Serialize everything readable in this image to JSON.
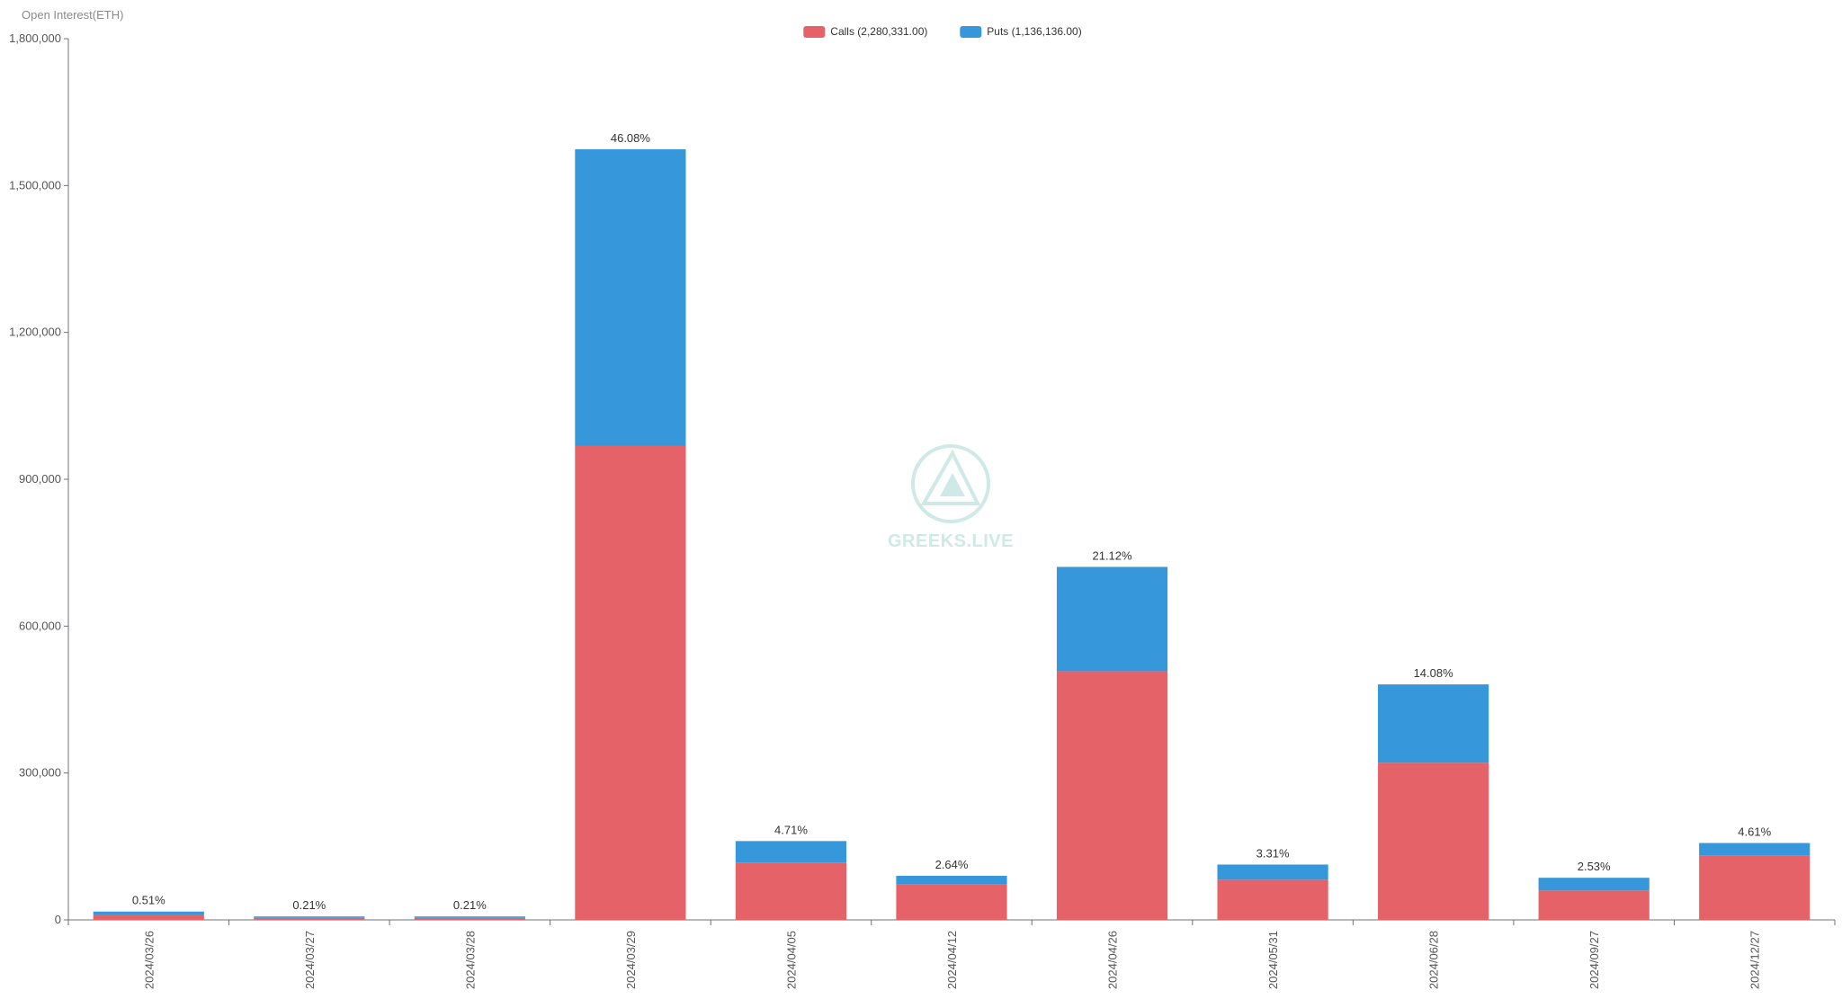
{
  "chart_data": {
    "type": "bar",
    "stacked": true,
    "ylabel": "Open Interest(ETH)",
    "ylim": [
      0,
      1800000
    ],
    "yticks": [
      0,
      300000,
      600000,
      900000,
      1200000,
      1500000,
      1800000
    ],
    "ytick_labels": [
      "0",
      "300,000",
      "600,000",
      "900,000",
      "1,200,000",
      "1,500,000",
      "1,800,000"
    ],
    "grid": false,
    "legend_position": "top-center",
    "categories": [
      "2024/03/26",
      "2024/03/27",
      "2024/03/28",
      "2024/03/29",
      "2024/04/05",
      "2024/04/12",
      "2024/04/26",
      "2024/05/31",
      "2024/06/28",
      "2024/09/27",
      "2024/12/27"
    ],
    "series": [
      {
        "name": "Calls",
        "legend_label": "Calls (2,280,331.00)",
        "color": "#e46268",
        "values": [
          10000,
          4000,
          4000,
          968000,
          117000,
          72000,
          508000,
          82000,
          321000,
          60000,
          132000
        ]
      },
      {
        "name": "Puts",
        "legend_label": "Puts (1,136,136.00)",
        "color": "#3698db",
        "values": [
          7000,
          3000,
          3000,
          606000,
          44000,
          18000,
          213000,
          31000,
          160000,
          26000,
          25000
        ]
      }
    ],
    "bar_labels": [
      "0.51%",
      "0.21%",
      "0.21%",
      "46.08%",
      "4.71%",
      "2.64%",
      "21.12%",
      "3.31%",
      "14.08%",
      "2.53%",
      "4.61%"
    ]
  },
  "watermark": {
    "text": "GREEKS.LIVE",
    "color": "#cfe9e6"
  }
}
